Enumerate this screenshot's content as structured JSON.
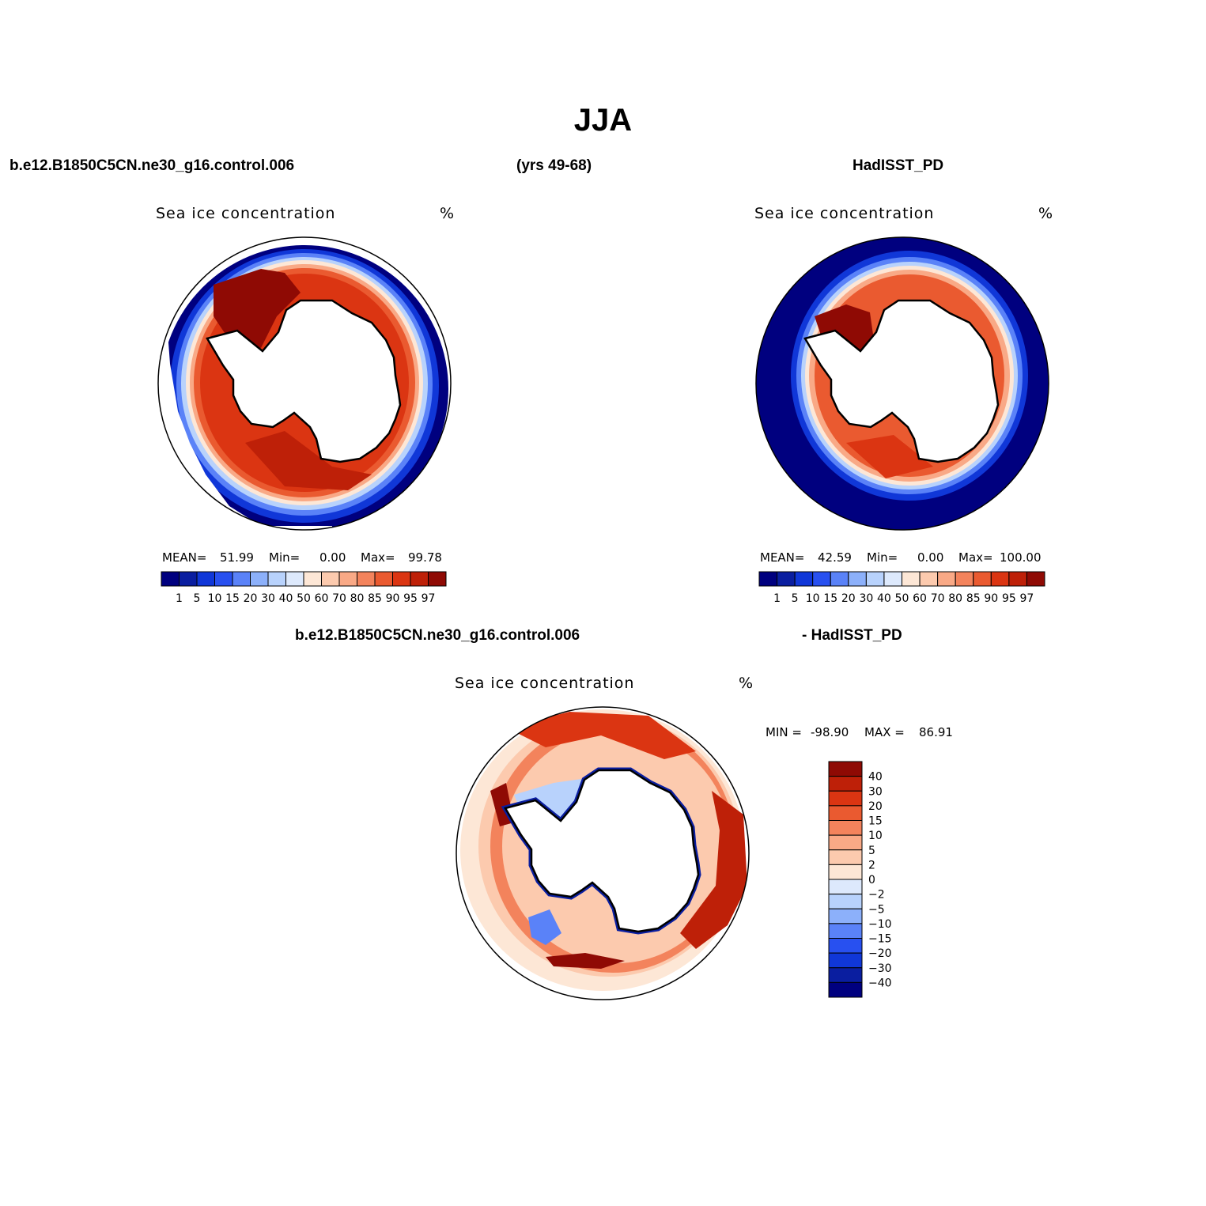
{
  "title": "JJA",
  "header": {
    "case_name": "b.e12.B1850C5CN.ne30_g16.control.006",
    "years": "(yrs 49-68)",
    "obs_name": "HadISST_PD"
  },
  "diff_header": {
    "case_name": "b.e12.B1850C5CN.ne30_g16.control.006",
    "obs_name": "- HadISST_PD"
  },
  "panels": [
    {
      "variable": "Sea ice concentration",
      "units": "%",
      "mean_label": "MEAN=",
      "mean": "51.99",
      "min_label": "Min=",
      "min": "0.00",
      "max_label": "Max=",
      "max": "99.78"
    },
    {
      "variable": "Sea ice concentration",
      "units": "%",
      "mean_label": "MEAN=",
      "mean": "42.59",
      "min_label": "Min=",
      "min": "0.00",
      "max_label": "Max=",
      "max": "100.00"
    }
  ],
  "diff_panel": {
    "variable": "Sea ice concentration",
    "units": "%",
    "min_label": "MIN =",
    "min": "-98.90",
    "max_label": "MAX =",
    "max": "86.91"
  },
  "colorbar_main": {
    "levels": [
      "1",
      "5",
      "10",
      "15",
      "20",
      "30",
      "40",
      "50",
      "60",
      "70",
      "80",
      "85",
      "90",
      "95",
      "97"
    ],
    "colors": [
      "#00007f",
      "#0a1ea0",
      "#1037d8",
      "#2850f0",
      "#5a82f8",
      "#8cb0fa",
      "#b8d2fc",
      "#dde9fc",
      "#fde7d6",
      "#fccaae",
      "#f9a986",
      "#f3835c",
      "#ea5a30",
      "#db3512",
      "#be2008",
      "#8f0a04"
    ]
  },
  "colorbar_diff": {
    "levels": [
      "40",
      "30",
      "20",
      "15",
      "10",
      "5",
      "2",
      "0",
      "−2",
      "−5",
      "−10",
      "−15",
      "−20",
      "−30",
      "−40"
    ],
    "colors": [
      "#8f0a04",
      "#be2008",
      "#db3512",
      "#ea5a30",
      "#f3835c",
      "#f9a986",
      "#fccaae",
      "#fde7d6",
      "#dde9fc",
      "#b8d2fc",
      "#8cb0fa",
      "#5a82f8",
      "#2850f0",
      "#1037d8",
      "#0a1ea0",
      "#00007f"
    ]
  }
}
